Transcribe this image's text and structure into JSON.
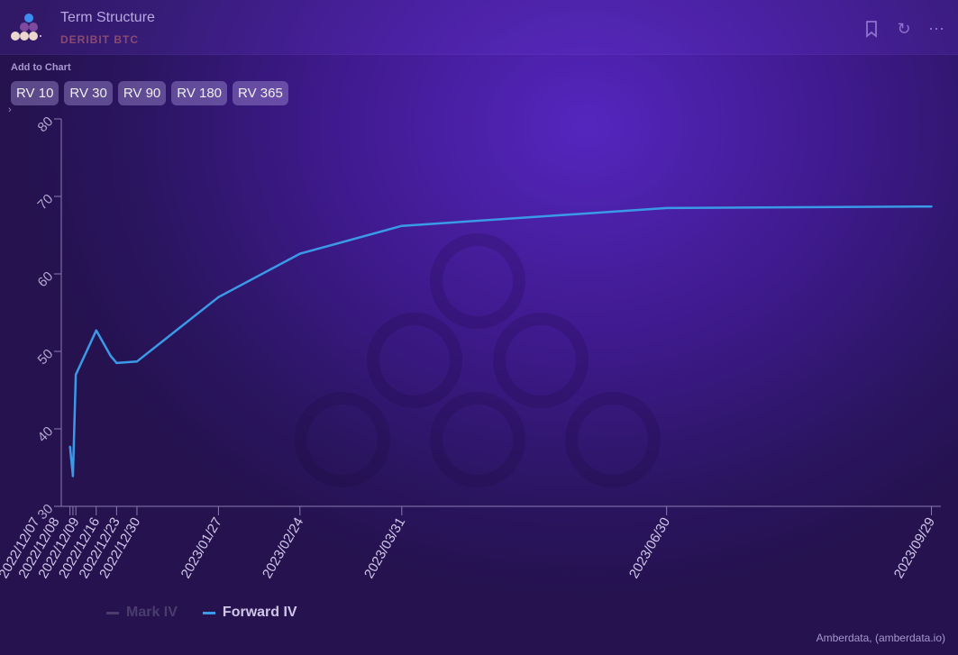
{
  "header": {
    "title": "Term Structure",
    "subtitle": "DERIBIT BTC",
    "icons": [
      "bookmark-icon",
      "refresh-icon",
      "more-icon"
    ]
  },
  "add_to_chart": {
    "label": "Add to Chart",
    "buttons": [
      "RV 10",
      "RV 30",
      "RV 90",
      "RV 180",
      "RV 365"
    ]
  },
  "credit": "Amberdata, (amberdata.io)",
  "colors": {
    "forward_iv": "#3b9ae8",
    "mark_iv": "#4a3d6e",
    "accent": "#5526be"
  },
  "chart_data": {
    "type": "line",
    "xlim": [
      "2022-12-04",
      "2023-10-01"
    ],
    "ylim": [
      30,
      80
    ],
    "yticks": [
      30,
      40,
      50,
      60,
      70,
      80
    ],
    "xticks": [
      "2022/12/07",
      "2022/12/08",
      "2022/12/09",
      "2022/12/16",
      "2022/12/23",
      "2022/12/30",
      "2023/01/27",
      "2023/02/24",
      "2023/03/31",
      "2023/06/30",
      "2023/09/29"
    ],
    "grid": false,
    "legend_position": "bottom-left",
    "series": [
      {
        "name": "Mark IV",
        "visible": false,
        "x": [],
        "values": []
      },
      {
        "name": "Forward IV",
        "visible": true,
        "x": [
          "2022/12/07",
          "2022/12/08",
          "2022/12/09",
          "2022/12/16",
          "2022/12/21",
          "2022/12/23",
          "2022/12/30",
          "2023/01/27",
          "2023/02/24",
          "2023/03/31",
          "2023/06/30",
          "2023/09/29"
        ],
        "values": [
          37.7,
          33.9,
          47.0,
          52.7,
          49.4,
          48.5,
          48.7,
          57.0,
          62.6,
          66.2,
          68.5,
          68.7
        ]
      }
    ]
  }
}
